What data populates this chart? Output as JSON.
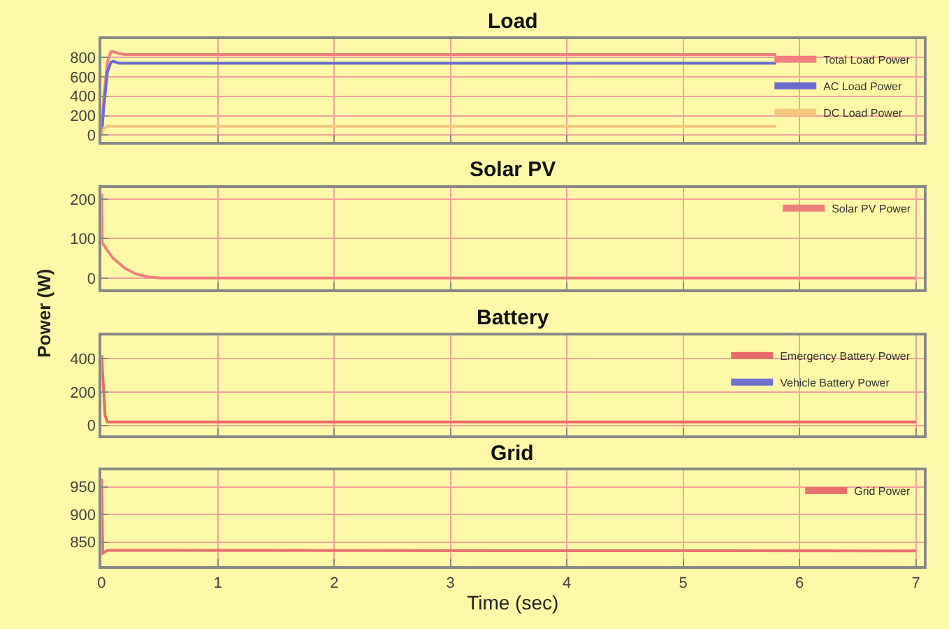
{
  "chart_data": [
    {
      "type": "line",
      "title": "Load",
      "xlim": [
        0,
        7.07
      ],
      "xticks": [
        0,
        1,
        2,
        3,
        4,
        5,
        6,
        7
      ],
      "ylim": [
        -70,
        990
      ],
      "yticks": [
        0,
        200,
        400,
        600,
        800
      ],
      "grid": true,
      "legend": "top right",
      "tick_labels": "y",
      "series": [
        {
          "name": "Total Load Power",
          "color": "#f08080",
          "x": [
            0,
            0.02,
            0.05,
            0.08,
            0.1,
            0.15,
            0.2,
            5.8
          ],
          "values": [
            0,
            400,
            750,
            860,
            860,
            840,
            830,
            830
          ]
        },
        {
          "name": "AC Load Power",
          "color": "#6b6bd0",
          "x": [
            0,
            0.02,
            0.05,
            0.08,
            0.1,
            0.15,
            0.2,
            5.8
          ],
          "values": [
            0,
            300,
            650,
            750,
            760,
            740,
            740,
            740
          ]
        },
        {
          "name": "DC Load Power",
          "color": "#f5c77e",
          "x": [
            0,
            0.02,
            0.05,
            5.8
          ],
          "values": [
            0,
            70,
            90,
            90
          ]
        }
      ]
    },
    {
      "type": "line",
      "title": "Solar PV",
      "ylabel": "Power (W)",
      "xlim": [
        0,
        7.07
      ],
      "xticks": [
        0,
        1,
        2,
        3,
        4,
        5,
        6,
        7
      ],
      "ylim": [
        -29,
        229
      ],
      "yticks": [
        0,
        100,
        200
      ],
      "grid": true,
      "legend": "top right",
      "tick_labels": "y",
      "series": [
        {
          "name": "Solar PV Power",
          "color": "#f08080",
          "x": [
            0,
            0.005,
            0.05,
            0.1,
            0.2,
            0.3,
            0.4,
            0.5,
            7
          ],
          "values": [
            215,
            90,
            70,
            50,
            25,
            10,
            3,
            0,
            0
          ]
        }
      ]
    },
    {
      "type": "line",
      "title": "Battery",
      "xlim": [
        0,
        7.07
      ],
      "xticks": [
        0,
        1,
        2,
        3,
        4,
        5,
        6,
        7
      ],
      "ylim": [
        -61,
        539
      ],
      "yticks": [
        0,
        200,
        400
      ],
      "grid": true,
      "legend": "top right",
      "tick_labels": "y",
      "series": [
        {
          "name": "Emergency Battery Power",
          "color": "#e86a6a",
          "x": [
            0,
            0.01,
            0.03,
            0.05,
            7
          ],
          "values": [
            420,
            300,
            60,
            20,
            20
          ]
        },
        {
          "name": "Vehicle Battery Power",
          "color": "#7070d0",
          "values": [
            null,
            null
          ]
        }
      ]
    },
    {
      "type": "line",
      "title": "Grid",
      "xlabel": "Time (sec)",
      "xlim": [
        0,
        7.07
      ],
      "xticks": [
        0,
        1,
        2,
        3,
        4,
        5,
        6,
        7
      ],
      "ylim": [
        806,
        980
      ],
      "yticks": [
        850,
        900,
        950
      ],
      "grid": true,
      "legend": "top right",
      "series": [
        {
          "name": "Grid Power",
          "color": "#e87070",
          "x": [
            0,
            0.01,
            0.05,
            7
          ],
          "values": [
            965,
            830,
            835,
            834
          ]
        }
      ]
    }
  ]
}
